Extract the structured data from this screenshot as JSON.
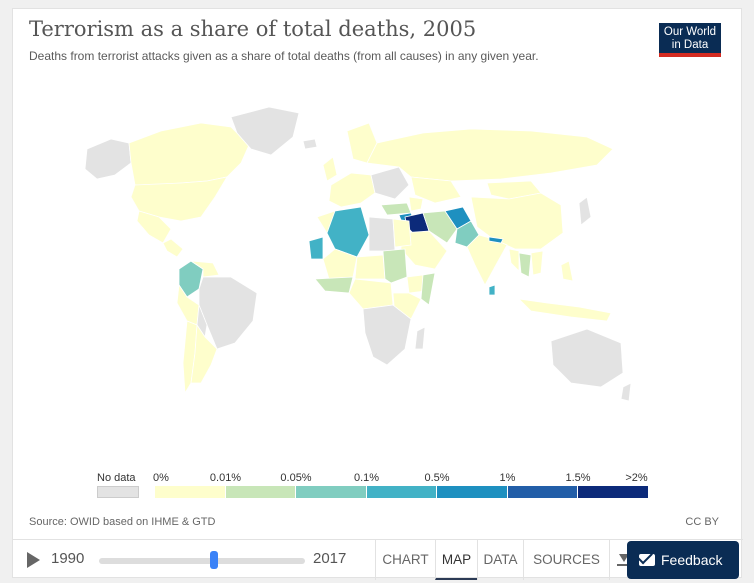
{
  "chart": {
    "title": "Terrorism as a share of total deaths, 2005",
    "subtitle": "Deaths from terrorist attacks given as a share of total deaths (from all causes) in any given year.",
    "source": "Source: OWID based on IHME & GTD",
    "license": "CC BY"
  },
  "logo": {
    "line1": "Our World",
    "line2": "in Data"
  },
  "legend": {
    "no_data_label": "No data",
    "no_data_color": "#e3e3e3",
    "ticks": [
      "0%",
      "0.01%",
      "0.05%",
      "0.1%",
      "0.5%",
      "1%",
      "1.5%",
      ">2%"
    ],
    "bins": [
      {
        "color": "#fefecc"
      },
      {
        "color": "#c8e6b8"
      },
      {
        "color": "#80cdc0"
      },
      {
        "color": "#42b2c6"
      },
      {
        "color": "#1e90c0"
      },
      {
        "color": "#225ea8"
      },
      {
        "color": "#0c2a7a"
      }
    ]
  },
  "timeline": {
    "start_year": "1990",
    "end_year": "2017",
    "selected_fraction": 0.56
  },
  "tabs": [
    {
      "label": "CHART",
      "active": false
    },
    {
      "label": "MAP",
      "active": true
    },
    {
      "label": "DATA",
      "active": false
    },
    {
      "label": "SOURCES",
      "active": false
    }
  ],
  "feedback": {
    "label": "Feedback"
  },
  "icons": {
    "play": "play-icon",
    "download": "download-icon",
    "mail": "mail-icon"
  }
}
